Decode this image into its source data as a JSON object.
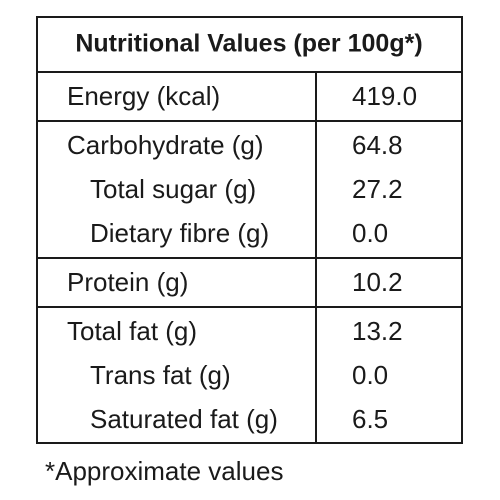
{
  "title": "Nutritional Values (per 100g*)",
  "groups": [
    {
      "label": "Energy (kcal)",
      "value": "419.0",
      "subrows": []
    },
    {
      "label": "Carbohydrate (g)",
      "value": "64.8",
      "subrows": [
        {
          "label": "Total sugar (g)",
          "value": "27.2"
        },
        {
          "label": "Dietary fibre (g)",
          "value": "0.0"
        }
      ]
    },
    {
      "label": "Protein (g)",
      "value": "10.2",
      "subrows": []
    },
    {
      "label": "Total fat (g)",
      "value": "13.2",
      "subrows": [
        {
          "label": "Trans fat (g)",
          "value": "0.0"
        },
        {
          "label": "Saturated fat (g)",
          "value": "6.5"
        }
      ]
    }
  ],
  "footnote": "*Approximate values"
}
